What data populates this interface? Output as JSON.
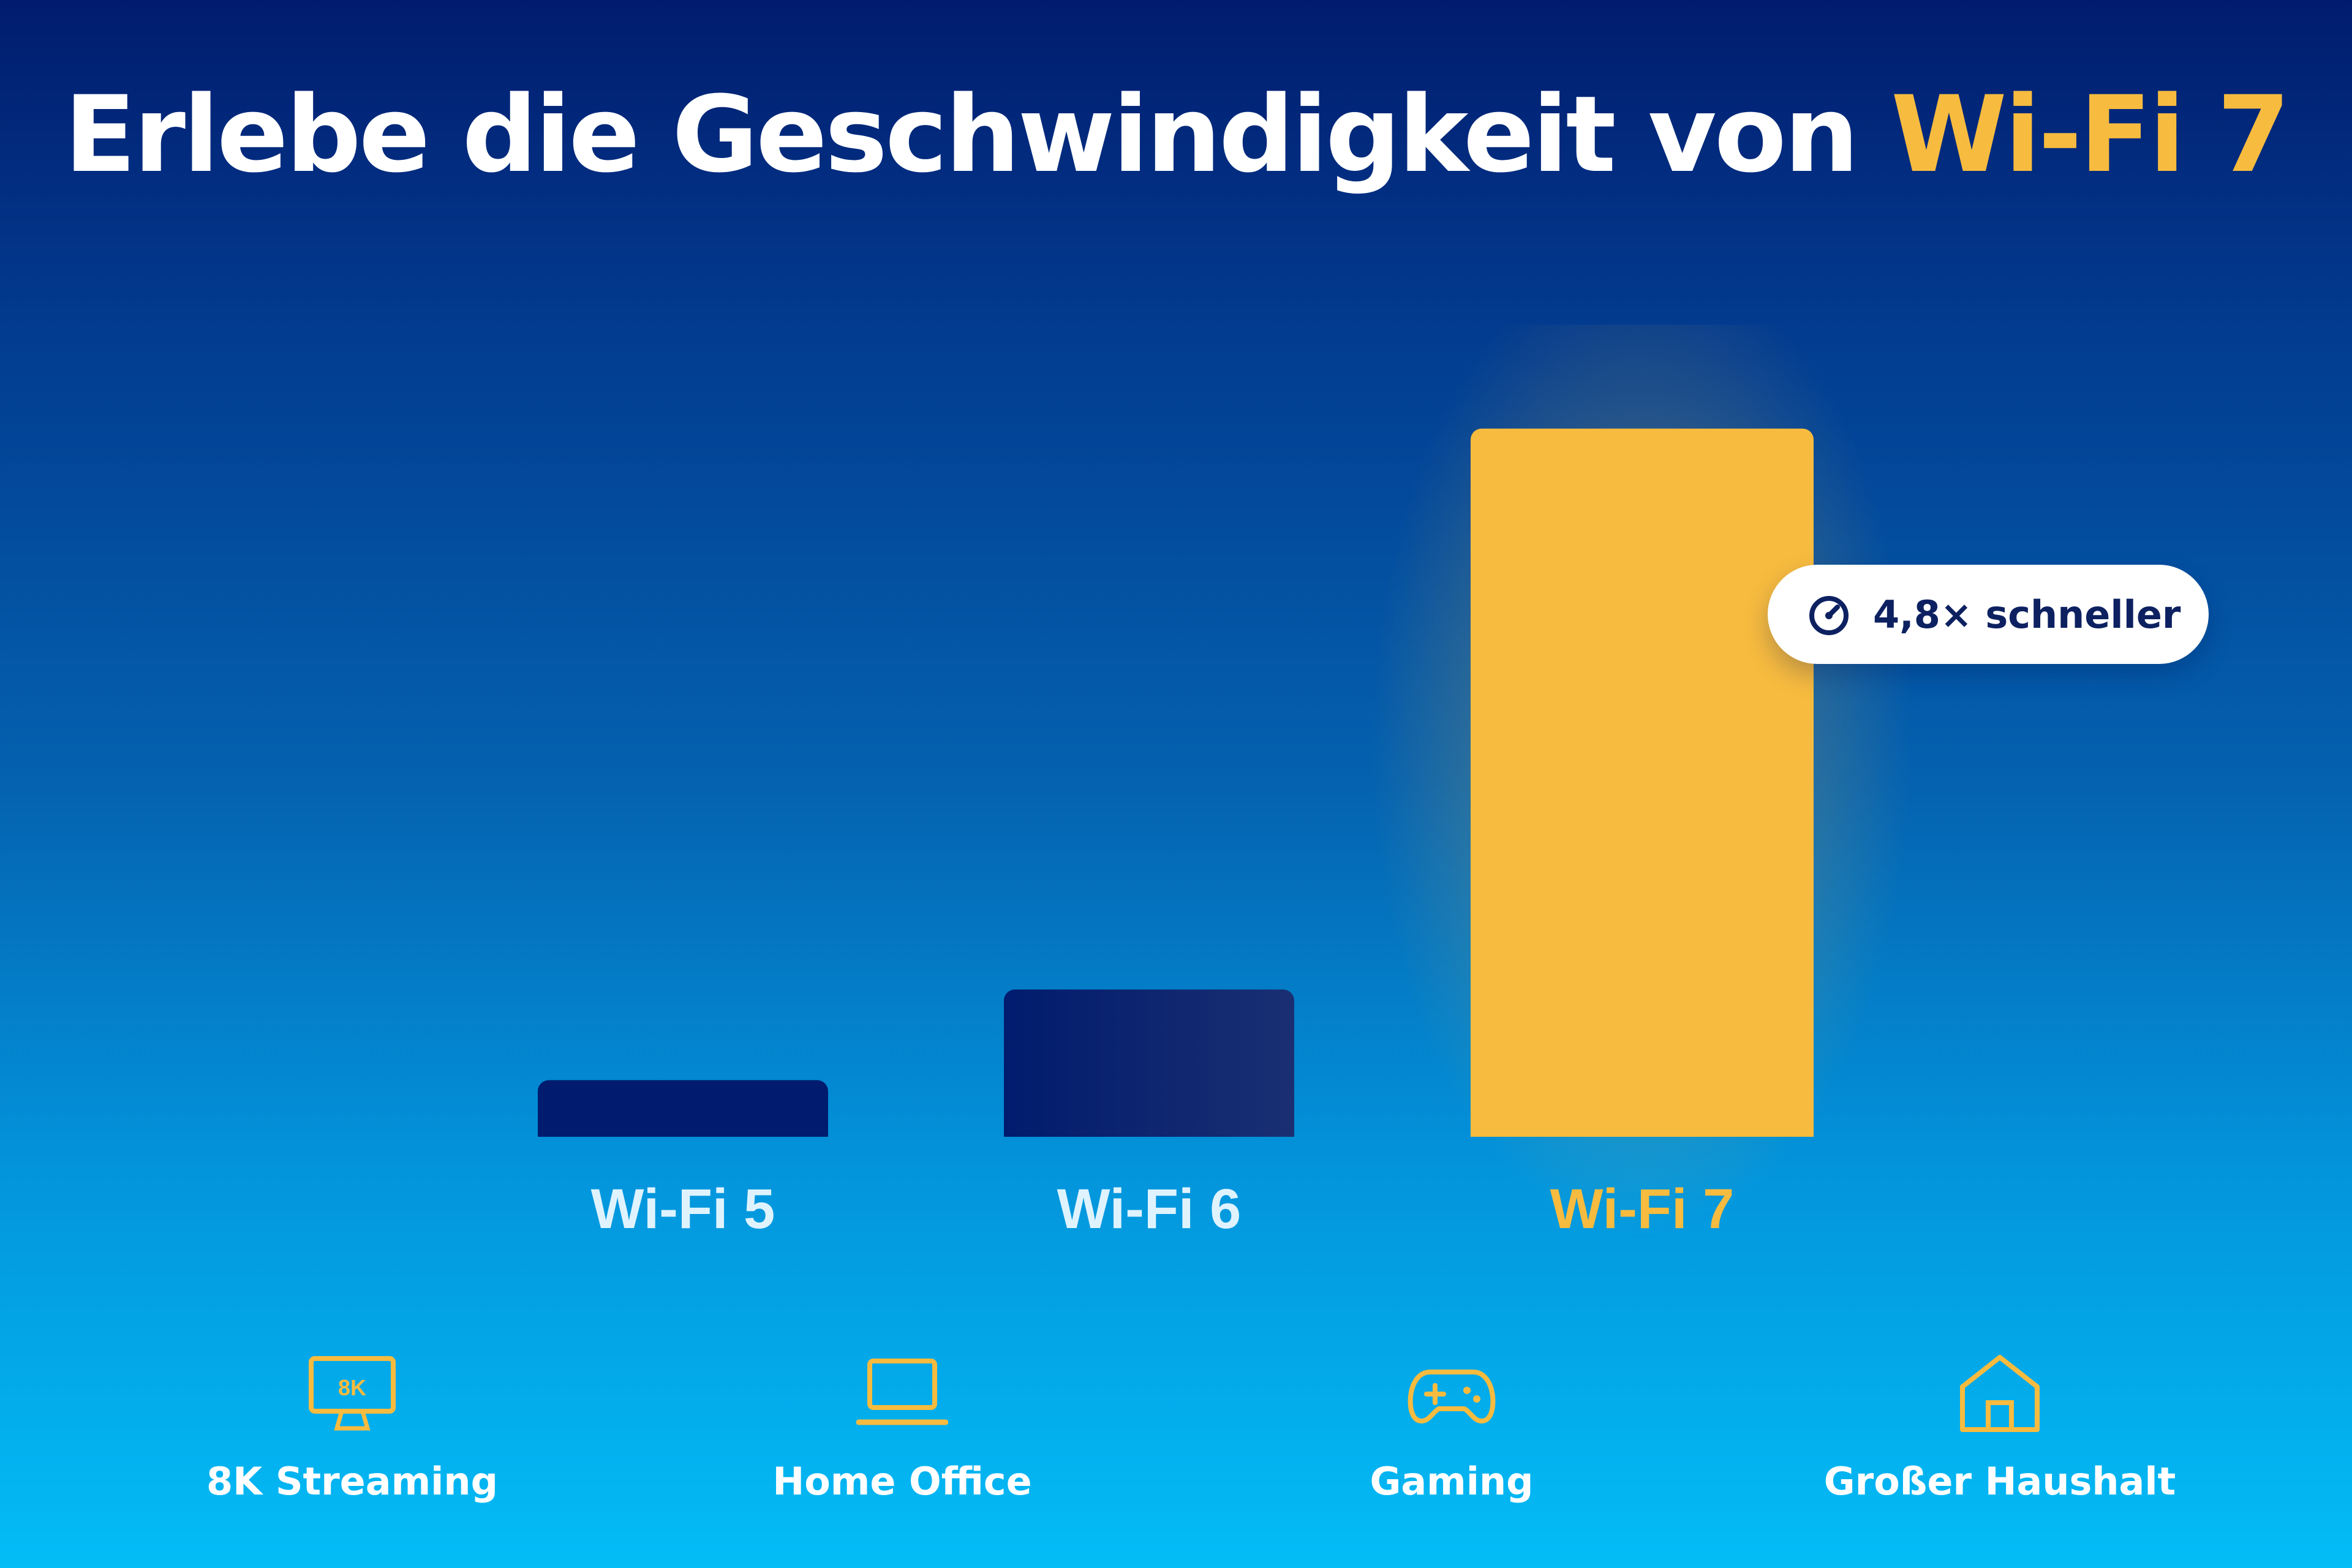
{
  "title": {
    "main": "Erlebe die Geschwindigkeit von",
    "accent": "Wi-Fi 7"
  },
  "colors": {
    "accent": "#f7bb3f",
    "bar_dark": "#011c6e",
    "bar_dark_end": "#1a2f72",
    "label_light": "#dff3ff",
    "badge_text": "#0d2161"
  },
  "badge": {
    "icon": "speedometer-icon",
    "text": "4,8× schneller"
  },
  "chart_data": {
    "type": "bar",
    "categories": [
      "Wi-Fi 5",
      "Wi-Fi 6",
      "Wi-Fi 7"
    ],
    "values": [
      1,
      2.6,
      12.5
    ],
    "highlight": "Wi-Fi 7",
    "annotation": "4,8× schneller",
    "title": "Erlebe die Geschwindigkeit von Wi-Fi 7",
    "xlabel": "",
    "ylabel": "",
    "grid": false,
    "legend": "none"
  },
  "features": [
    {
      "icon": "8k-tv-icon",
      "icon_text": "8K",
      "label": "8K Streaming"
    },
    {
      "icon": "laptop-icon",
      "label": "Home Office"
    },
    {
      "icon": "gamepad-icon",
      "label": "Gaming"
    },
    {
      "icon": "house-icon",
      "label": "Großer Haushalt"
    }
  ]
}
